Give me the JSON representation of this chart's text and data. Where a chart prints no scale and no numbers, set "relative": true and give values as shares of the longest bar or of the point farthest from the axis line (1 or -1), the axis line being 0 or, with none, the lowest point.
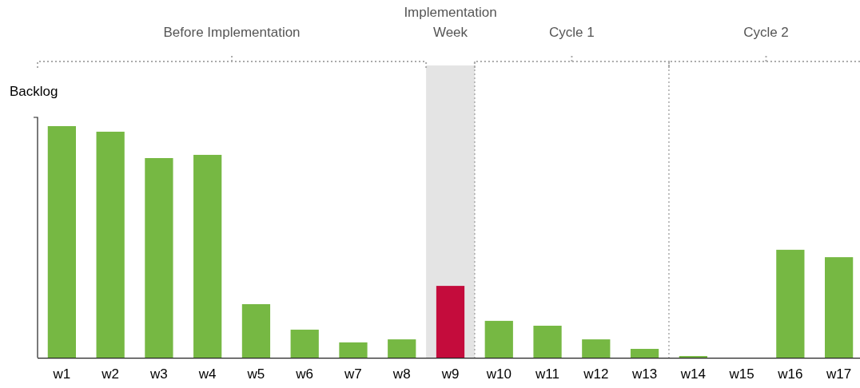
{
  "chart_data": {
    "type": "bar",
    "relative": true,
    "ylabel": "Backlog",
    "categories": [
      "w1",
      "w2",
      "w3",
      "w4",
      "w5",
      "w6",
      "w7",
      "w8",
      "w9",
      "w10",
      "w11",
      "w12",
      "w13",
      "w14",
      "w15",
      "w16",
      "w17"
    ],
    "values": [
      1,
      0.976,
      0.862,
      0.876,
      0.231,
      0.121,
      0.066,
      0.079,
      0.31,
      0.159,
      0.138,
      0.079,
      0.038,
      0.007,
      0,
      0.466,
      0.434
    ],
    "colors": [
      "#76b843",
      "#76b843",
      "#76b843",
      "#76b843",
      "#76b843",
      "#76b843",
      "#76b843",
      "#76b843",
      "#c40c3c",
      "#76b843",
      "#76b843",
      "#76b843",
      "#76b843",
      "#76b843",
      "#76b843",
      "#76b843",
      "#76b843"
    ],
    "annotations": [
      "Before Implementation",
      "Cycle 1",
      "Cycle 2"
    ],
    "bands": [
      {
        "axis": "x",
        "from": "w9",
        "to": "w9",
        "label": "Implementation Week",
        "color": "#e4e4e4"
      }
    ]
  }
}
